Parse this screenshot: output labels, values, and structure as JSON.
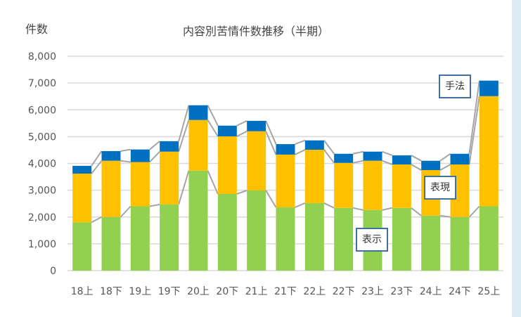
{
  "chart_data": {
    "type": "bar",
    "stacked": true,
    "title": "内容別苦情件数推移（半期）",
    "ylabel": "件数",
    "xlabel": "",
    "ylim": [
      0,
      8000
    ],
    "yticks": [
      "0",
      "1,000",
      "2,000",
      "3,000",
      "4,000",
      "5,000",
      "6,000",
      "7,000",
      "8,000"
    ],
    "grid": true,
    "categories": [
      "18上",
      "18下",
      "19上",
      "19下",
      "20上",
      "20下",
      "21上",
      "21下",
      "22上",
      "22下",
      "23上",
      "23下",
      "24上",
      "24下",
      "25上"
    ],
    "series": [
      {
        "name": "表示",
        "color": "#92d050",
        "values": [
          1800,
          2000,
          2400,
          2470,
          3730,
          2860,
          2990,
          2360,
          2520,
          2340,
          2260,
          2340,
          2050,
          2000,
          2400
        ]
      },
      {
        "name": "表現",
        "color": "#ffc000",
        "values": [
          1820,
          2100,
          1650,
          1970,
          1890,
          2150,
          2210,
          1970,
          1990,
          1680,
          1840,
          1620,
          1700,
          1960,
          4110
        ]
      },
      {
        "name": "手法",
        "color": "#0070c0",
        "values": [
          290,
          360,
          470,
          390,
          550,
          400,
          390,
          390,
          350,
          340,
          340,
          340,
          350,
          400,
          580
        ]
      }
    ]
  }
}
